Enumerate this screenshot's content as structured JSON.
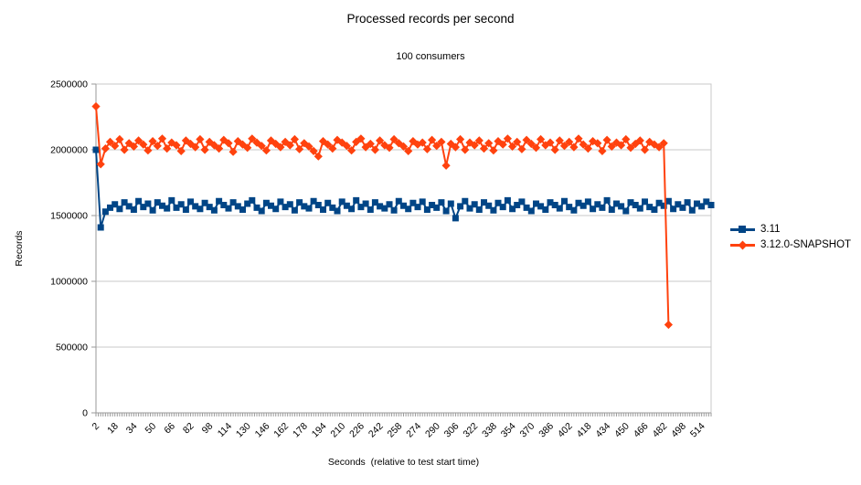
{
  "title": "Processed records per second",
  "subtitle": "100 consumers",
  "x_axis_title": "Seconds  (relative to test start time)",
  "y_axis_title": "Records",
  "legend": {
    "position": "right",
    "items": [
      {
        "label": "3.11",
        "color": "#004586",
        "marker": "square"
      },
      {
        "label": "3.12.0-SNAPSHOT",
        "color": "#FF420E",
        "marker": "diamond"
      }
    ]
  },
  "colors": {
    "background": "#ffffff",
    "gridline": "#c9c9c9",
    "axis": "#9a9a9a",
    "series_blue": "#004586",
    "series_orange": "#FF420E",
    "text": "#000000"
  },
  "chart_data": {
    "type": "line",
    "title": "Processed records per second",
    "subtitle": "100 consumers",
    "xlabel": "Seconds  (relative to test start time)",
    "ylabel": "Records",
    "grid": "horizontal",
    "legend_position": "right",
    "x_range": [
      2,
      522
    ],
    "ylim": [
      0,
      2500000
    ],
    "y_ticks": [
      0,
      500000,
      1000000,
      1500000,
      2000000,
      2500000
    ],
    "x_minor_tick_step": 2,
    "x_label_ticks": [
      2,
      18,
      34,
      50,
      66,
      82,
      98,
      114,
      130,
      146,
      162,
      178,
      194,
      210,
      226,
      242,
      258,
      274,
      290,
      306,
      322,
      338,
      354,
      370,
      386,
      402,
      418,
      434,
      450,
      466,
      482,
      498,
      514
    ],
    "series": [
      {
        "name": "3.11",
        "color": "#004586",
        "marker": "square",
        "x_start": 2,
        "x_step": 4,
        "values": [
          2000000,
          1410000,
          1530000,
          1560000,
          1585000,
          1550000,
          1600000,
          1570000,
          1545000,
          1610000,
          1565000,
          1590000,
          1540000,
          1600000,
          1575000,
          1555000,
          1615000,
          1560000,
          1585000,
          1545000,
          1605000,
          1570000,
          1550000,
          1595000,
          1565000,
          1540000,
          1610000,
          1580000,
          1555000,
          1600000,
          1570000,
          1545000,
          1590000,
          1615000,
          1560000,
          1535000,
          1595000,
          1575000,
          1550000,
          1605000,
          1565000,
          1585000,
          1540000,
          1600000,
          1570000,
          1555000,
          1610000,
          1580000,
          1545000,
          1595000,
          1560000,
          1535000,
          1605000,
          1575000,
          1550000,
          1615000,
          1565000,
          1590000,
          1545000,
          1600000,
          1570000,
          1555000,
          1585000,
          1540000,
          1610000,
          1575000,
          1550000,
          1595000,
          1565000,
          1605000,
          1545000,
          1580000,
          1560000,
          1600000,
          1535000,
          1590000,
          1480000,
          1570000,
          1610000,
          1555000,
          1585000,
          1545000,
          1600000,
          1575000,
          1540000,
          1595000,
          1565000,
          1615000,
          1550000,
          1580000,
          1605000,
          1560000,
          1535000,
          1590000,
          1570000,
          1545000,
          1600000,
          1580000,
          1555000,
          1610000,
          1565000,
          1540000,
          1595000,
          1575000,
          1605000,
          1550000,
          1585000,
          1560000,
          1615000,
          1545000,
          1590000,
          1570000,
          1535000,
          1600000,
          1580000,
          1555000,
          1605000,
          1565000,
          1545000,
          1595000,
          1575000,
          1610000,
          1550000,
          1585000,
          1560000,
          1600000,
          1540000,
          1590000,
          1570000,
          1605000,
          1580000
        ]
      },
      {
        "name": "3.12.0-SNAPSHOT",
        "color": "#FF420E",
        "marker": "diamond",
        "x_start": 2,
        "x_step": 4,
        "values": [
          2330000,
          1890000,
          2010000,
          2060000,
          2030000,
          2080000,
          2000000,
          2050000,
          2025000,
          2070000,
          2040000,
          1995000,
          2065000,
          2030000,
          2085000,
          2010000,
          2055000,
          2035000,
          1990000,
          2070000,
          2045000,
          2020000,
          2080000,
          2000000,
          2060000,
          2035000,
          2010000,
          2075000,
          2050000,
          1985000,
          2065000,
          2040000,
          2015000,
          2085000,
          2055000,
          2030000,
          1995000,
          2070000,
          2045000,
          2020000,
          2060000,
          2035000,
          2080000,
          2005000,
          2050000,
          2025000,
          1990000,
          1950000,
          2065000,
          2040000,
          2010000,
          2075000,
          2055000,
          2030000,
          1995000,
          2060000,
          2085000,
          2020000,
          2045000,
          2000000,
          2070000,
          2035000,
          2015000,
          2080000,
          2050000,
          2025000,
          1990000,
          2065000,
          2040000,
          2055000,
          2005000,
          2075000,
          2030000,
          2060000,
          1880000,
          2045000,
          2020000,
          2080000,
          2000000,
          2055000,
          2035000,
          2070000,
          2010000,
          2050000,
          1995000,
          2065000,
          2040000,
          2085000,
          2025000,
          2060000,
          2005000,
          2075000,
          2045000,
          2015000,
          2080000,
          2035000,
          2055000,
          2000000,
          2070000,
          2030000,
          2060000,
          2020000,
          2085000,
          2040000,
          2010000,
          2065000,
          2050000,
          1990000,
          2075000,
          2025000,
          2055000,
          2035000,
          2080000,
          2015000,
          2045000,
          2070000,
          2000000,
          2060000,
          2040000,
          2020000,
          2050000,
          670000
        ]
      }
    ]
  }
}
